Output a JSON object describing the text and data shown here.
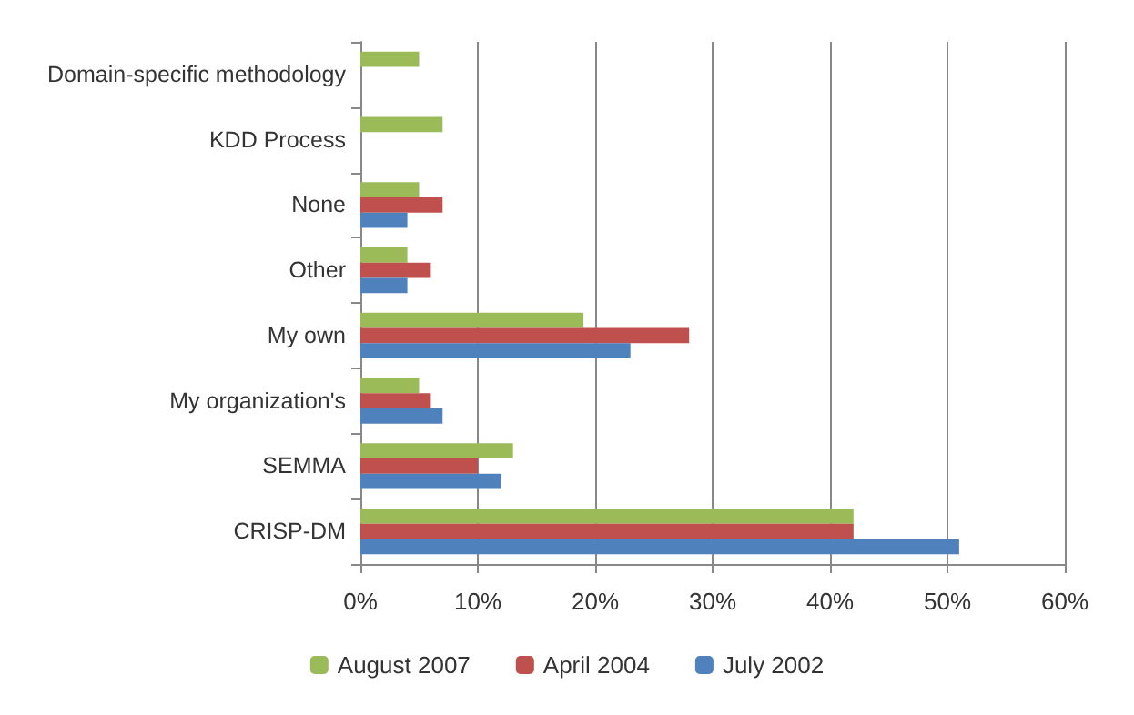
{
  "chart_data": {
    "type": "bar",
    "orientation": "horizontal",
    "categories": [
      "Domain-specific methodology",
      "KDD Process",
      "None",
      "Other",
      "My own",
      "My organization's",
      "SEMMA",
      "CRISP-DM"
    ],
    "series": [
      {
        "name": "August 2007",
        "color": "#9bbb59",
        "values": [
          5,
          7,
          5,
          4,
          19,
          5,
          13,
          42
        ]
      },
      {
        "name": "April 2004",
        "color": "#c0504d",
        "values": [
          null,
          null,
          7,
          6,
          28,
          6,
          10,
          42
        ]
      },
      {
        "name": "July 2002",
        "color": "#4f81bd",
        "values": [
          null,
          null,
          4,
          4,
          23,
          7,
          12,
          51
        ]
      }
    ],
    "xlim": [
      0,
      60
    ],
    "xticks": [
      {
        "value": 0,
        "label": "0%"
      },
      {
        "value": 10,
        "label": "10%"
      },
      {
        "value": 20,
        "label": "20%"
      },
      {
        "value": 30,
        "label": "30%"
      },
      {
        "value": 40,
        "label": "40%"
      },
      {
        "value": 50,
        "label": "50%"
      },
      {
        "value": 60,
        "label": "60%"
      }
    ],
    "grid": "x",
    "legend": "bottom"
  }
}
